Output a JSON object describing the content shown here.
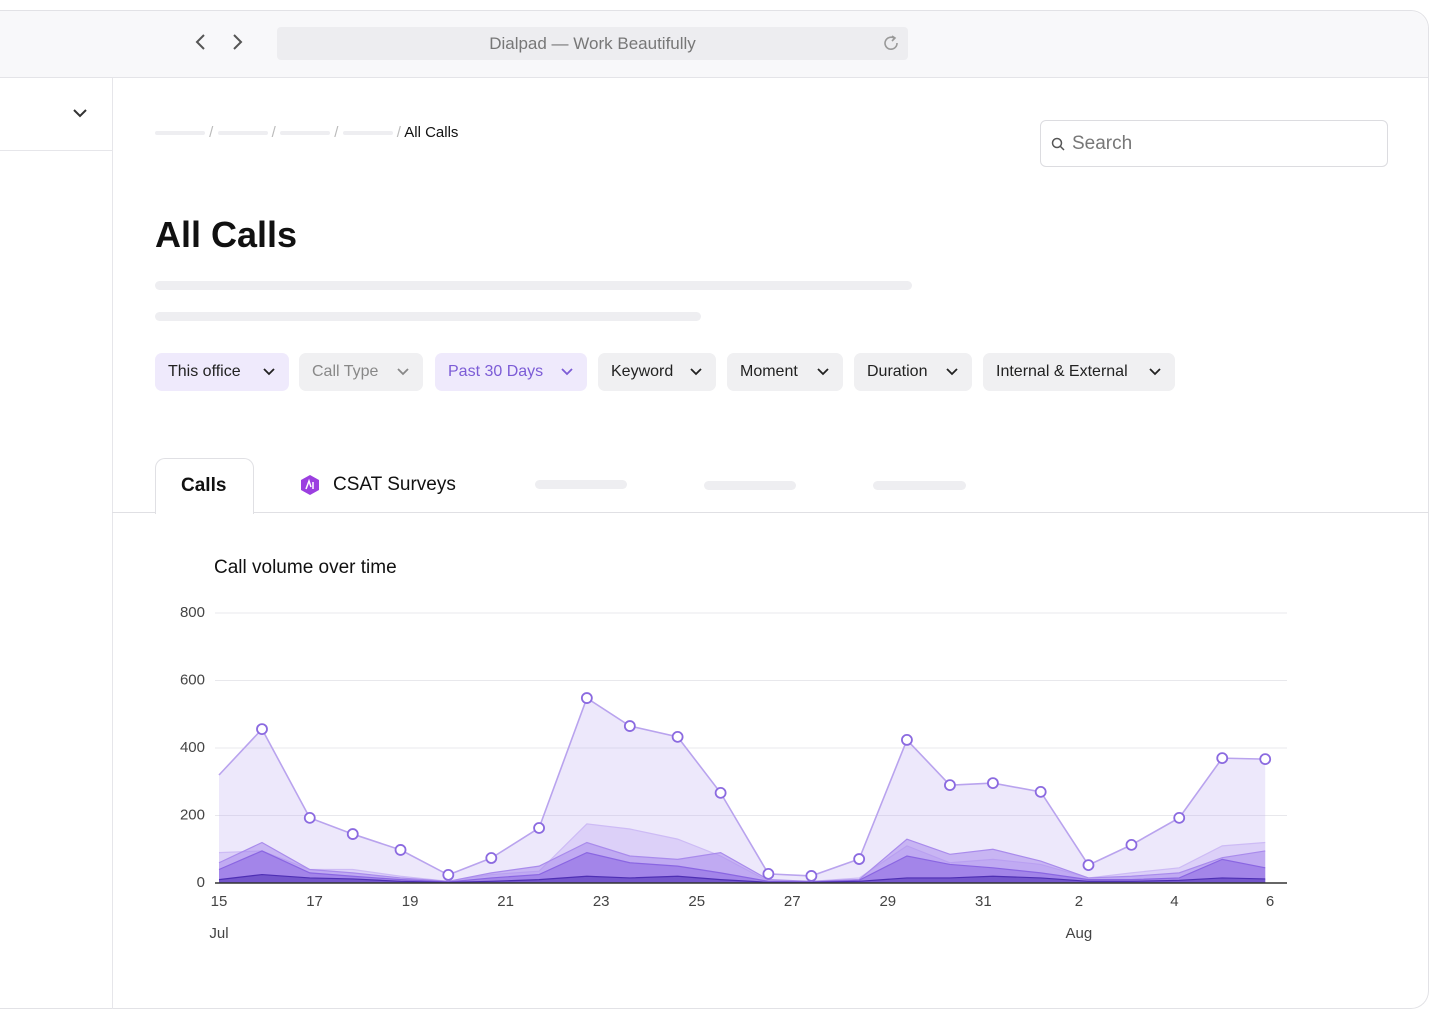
{
  "browser": {
    "title": "Dialpad — Work Beautifully"
  },
  "breadcrumb": {
    "current": "All Calls"
  },
  "search": {
    "placeholder": "Search"
  },
  "header": {
    "title": "All Calls"
  },
  "filters": [
    "This office",
    "Call Type",
    "Past 30 Days",
    "Keyword",
    "Moment",
    "Duration",
    "Internal & External"
  ],
  "tabs": [
    "Calls",
    "CSAT Surveys"
  ],
  "chart_data": {
    "type": "area",
    "title": "Call volume over time",
    "x": [
      0,
      0.9,
      1.9,
      2.8,
      3.8,
      4.8,
      5.7,
      6.7,
      7.7,
      8.6,
      9.6,
      10.5,
      11.5,
      12.4,
      13.4,
      14.4,
      15.3,
      16.2,
      17.2,
      18.2,
      19.1,
      20.1,
      21,
      21.9
    ],
    "series": [
      {
        "color": "#b9a3ee",
        "markers": true,
        "values": [
          320,
          456,
          193,
          145,
          98,
          24,
          74,
          163,
          548,
          465,
          433,
          267,
          27,
          21,
          71,
          424,
          290,
          296,
          270,
          53,
          113,
          193,
          370,
          367
        ]
      },
      {
        "color": "#cdbbf5",
        "markers": false,
        "values": [
          90,
          95,
          40,
          40,
          20,
          5,
          25,
          35,
          175,
          160,
          130,
          80,
          5,
          5,
          15,
          110,
          60,
          70,
          55,
          15,
          30,
          45,
          110,
          120
        ]
      },
      {
        "color": "#a98bec",
        "markers": false,
        "values": [
          60,
          120,
          40,
          30,
          15,
          5,
          30,
          50,
          120,
          80,
          70,
          90,
          10,
          5,
          10,
          130,
          85,
          100,
          65,
          15,
          20,
          30,
          75,
          95
        ]
      },
      {
        "color": "#8a66e2",
        "markers": false,
        "values": [
          40,
          95,
          30,
          20,
          10,
          3,
          15,
          25,
          90,
          60,
          50,
          30,
          5,
          3,
          8,
          80,
          55,
          45,
          30,
          10,
          10,
          15,
          70,
          45
        ]
      },
      {
        "color": "#4e2fb4",
        "markers": false,
        "values": [
          10,
          25,
          15,
          12,
          5,
          2,
          5,
          10,
          20,
          15,
          20,
          10,
          2,
          2,
          5,
          15,
          15,
          20,
          15,
          5,
          5,
          8,
          15,
          12
        ]
      }
    ],
    "xlim": [
      0,
      22
    ],
    "xticks": [
      {
        "value": 0,
        "label": "15"
      },
      {
        "value": 2,
        "label": "17"
      },
      {
        "value": 4,
        "label": "19"
      },
      {
        "value": 6,
        "label": "21"
      },
      {
        "value": 8,
        "label": "23"
      },
      {
        "value": 10,
        "label": "25"
      },
      {
        "value": 12,
        "label": "27"
      },
      {
        "value": 14,
        "label": "29"
      },
      {
        "value": 16,
        "label": "31"
      },
      {
        "value": 18,
        "label": "2"
      },
      {
        "value": 20,
        "label": "4"
      },
      {
        "value": 22,
        "label": "6"
      }
    ],
    "month_labels": [
      {
        "value": 0,
        "label": "Jul"
      },
      {
        "value": 18,
        "label": "Aug"
      }
    ],
    "ylim": [
      0,
      800
    ],
    "yticks": [
      0,
      200,
      400,
      600,
      800
    ],
    "grid": true
  }
}
